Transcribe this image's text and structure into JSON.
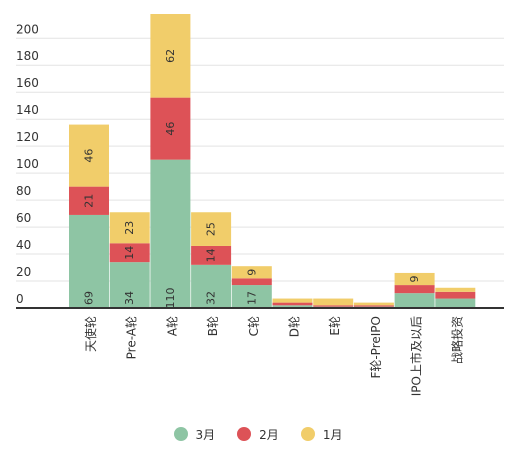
{
  "chart_data": {
    "type": "bar",
    "stacked": true,
    "categories": [
      "天使轮",
      "Pre-A轮",
      "A轮",
      "B轮",
      "C轮",
      "D轮",
      "E轮",
      "F轮-PreIPO",
      "IPO上市及以后",
      "战略投资"
    ],
    "series": [
      {
        "name": "3月",
        "color": "#8ec5a4",
        "values": [
          69,
          34,
          110,
          32,
          17,
          2,
          1,
          1,
          11,
          7
        ]
      },
      {
        "name": "2月",
        "color": "#dd5257",
        "values": [
          21,
          14,
          46,
          14,
          5,
          2,
          1,
          1,
          6,
          5
        ]
      },
      {
        "name": "1月",
        "color": "#f1cd6a",
        "values": [
          46,
          23,
          62,
          25,
          9,
          3,
          5,
          2,
          9,
          3
        ]
      }
    ],
    "data_labels": {
      "3月": [
        "69",
        "34",
        "110",
        "32",
        "17",
        "",
        "",
        "",
        "",
        ""
      ],
      "2月": [
        "21",
        "14",
        "46",
        "14",
        "",
        "",
        "",
        "",
        "",
        ""
      ],
      "1月": [
        "46",
        "23",
        "62",
        "25",
        "9",
        "",
        "",
        "",
        "9",
        ""
      ]
    },
    "yticks": [
      0,
      20,
      40,
      60,
      80,
      100,
      120,
      140,
      160,
      180,
      200
    ],
    "ylim": [
      0,
      218
    ],
    "grid": true,
    "legend_position": "bottom",
    "title": "",
    "xlabel": "",
    "ylabel": ""
  }
}
